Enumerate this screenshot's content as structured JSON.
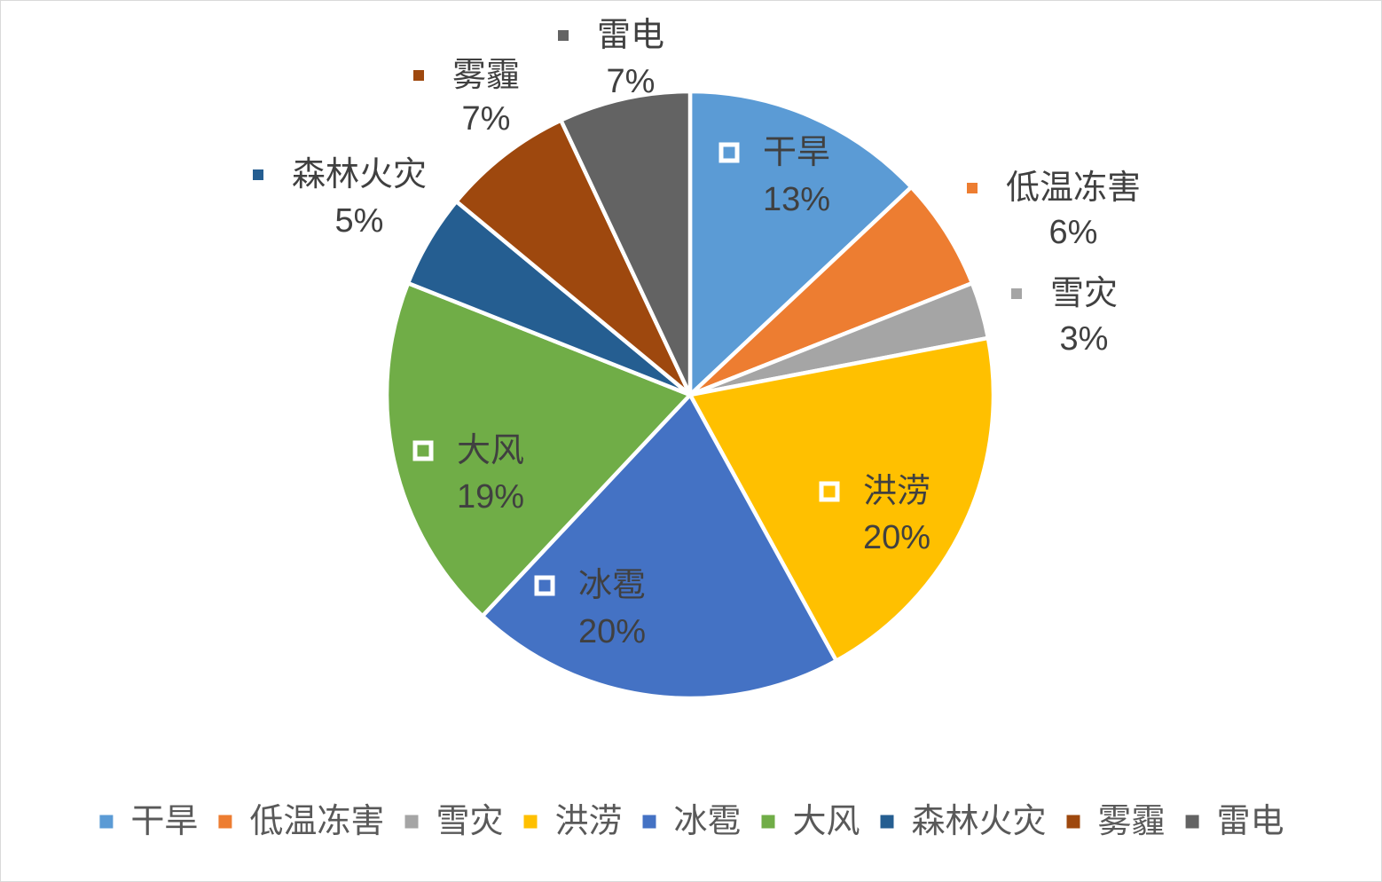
{
  "chart_data": {
    "type": "pie",
    "categories": [
      "干旱",
      "低温冻害",
      "雪灾",
      "洪涝",
      "冰雹",
      "大风",
      "森林火灾",
      "雾霾",
      "雷电"
    ],
    "values": [
      13,
      6,
      3,
      20,
      20,
      19,
      5,
      7,
      7
    ],
    "labels": [
      "13%",
      "6%",
      "3%",
      "20%",
      "20%",
      "19%",
      "5%",
      "7%",
      "7%"
    ],
    "colors": [
      "#5B9BD5",
      "#ED7D31",
      "#A5A5A5",
      "#FFC000",
      "#4472C4",
      "#70AD47",
      "#255E91",
      "#9E480E",
      "#636363"
    ],
    "legend": "bottom"
  }
}
